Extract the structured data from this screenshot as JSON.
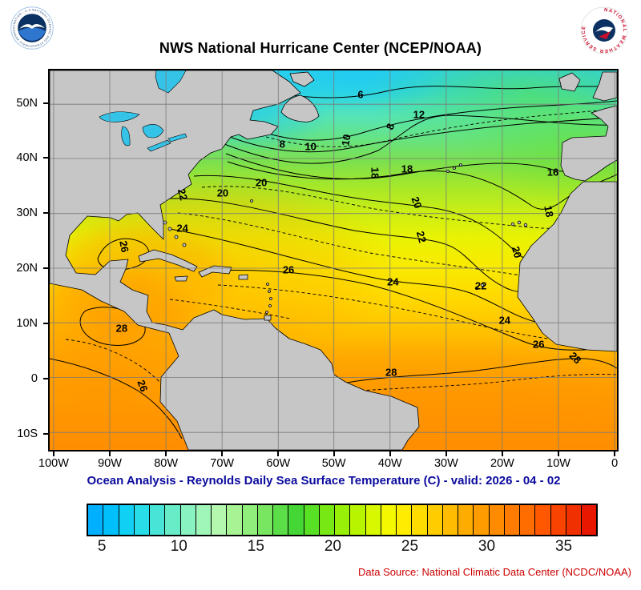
{
  "header": {
    "title": "NWS National Hurricane Center (NCEP/NOAA)"
  },
  "logos": {
    "noaa_ring_text": "NATIONAL OCEANIC AND ATMOSPHERIC ADMINISTRATION - U.S. DEPARTMENT OF COMMERCE",
    "nws_ring_text": "NATIONAL WEATHER SERVICE"
  },
  "caption": "Ocean Analysis - Reynolds Daily Sea Surface Temperature (C) - valid: 2026 - 04 - 02",
  "footer": {
    "data_source": "Data Source: National Climatic Data Center (NCDC/NOAA)"
  },
  "colors": {
    "caption": "#0b0b9e",
    "footer_text": "#cc0000",
    "land": "#c6c6c6",
    "lakes": "#35c4e8"
  },
  "chart_data": {
    "type": "heatmap",
    "subtype": "sea-surface-temperature contour map",
    "region": "North Atlantic / Tropical Atlantic",
    "units": "C",
    "valid_date": "2026 - 04 - 02",
    "isotherm_values": [
      6,
      8,
      10,
      12,
      16,
      18,
      20,
      22,
      24,
      26,
      28
    ],
    "lat_ticks": [
      {
        "label": "50N",
        "pos": 8.9
      },
      {
        "label": "40N",
        "pos": 23.2
      },
      {
        "label": "30N",
        "pos": 37.7
      },
      {
        "label": "20N",
        "pos": 52.1
      },
      {
        "label": "10N",
        "pos": 66.5
      },
      {
        "label": "0",
        "pos": 80.9
      },
      {
        "label": "10S",
        "pos": 95.4
      }
    ],
    "lon_ticks": [
      {
        "label": "100W",
        "pos": 0.7
      },
      {
        "label": "90W",
        "pos": 10.6
      },
      {
        "label": "80W",
        "pos": 20.5
      },
      {
        "label": "70W",
        "pos": 30.4
      },
      {
        "label": "60W",
        "pos": 40.3
      },
      {
        "label": "50W",
        "pos": 50.1
      },
      {
        "label": "40W",
        "pos": 60.0
      },
      {
        "label": "30W",
        "pos": 69.9
      },
      {
        "label": "20W",
        "pos": 79.8
      },
      {
        "label": "10W",
        "pos": 89.7
      },
      {
        "label": "0",
        "pos": 99.6
      }
    ],
    "contour_labels": [
      {
        "v": "6",
        "x": 54.8,
        "y": 6.3,
        "r": 0
      },
      {
        "v": "8",
        "x": 60.0,
        "y": 14.8,
        "r": -70
      },
      {
        "v": "12",
        "x": 65.1,
        "y": 11.6,
        "r": 0
      },
      {
        "v": "8",
        "x": 41.0,
        "y": 19.4,
        "r": 0
      },
      {
        "v": "10",
        "x": 46.0,
        "y": 20.0,
        "r": 0
      },
      {
        "v": "10",
        "x": 52.3,
        "y": 18.4,
        "r": -80
      },
      {
        "v": "16",
        "x": 88.7,
        "y": 26.8,
        "r": 0
      },
      {
        "v": "18",
        "x": 63.0,
        "y": 26.0,
        "r": 0
      },
      {
        "v": "18",
        "x": 57.3,
        "y": 27.0,
        "r": 90
      },
      {
        "v": "20",
        "x": 37.3,
        "y": 29.5,
        "r": 0
      },
      {
        "v": "20",
        "x": 30.5,
        "y": 32.3,
        "r": 0
      },
      {
        "v": "22",
        "x": 23.4,
        "y": 32.7,
        "r": 75
      },
      {
        "v": "20",
        "x": 64.7,
        "y": 34.8,
        "r": 70
      },
      {
        "v": "18",
        "x": 88.0,
        "y": 37.1,
        "r": 80
      },
      {
        "v": "24",
        "x": 23.4,
        "y": 41.6,
        "r": 0
      },
      {
        "v": "22",
        "x": 65.5,
        "y": 43.9,
        "r": 75
      },
      {
        "v": "26",
        "x": 13.1,
        "y": 46.4,
        "r": 80
      },
      {
        "v": "20",
        "x": 82.3,
        "y": 47.9,
        "r": 75
      },
      {
        "v": "26",
        "x": 42.1,
        "y": 52.5,
        "r": 0
      },
      {
        "v": "24",
        "x": 60.5,
        "y": 55.7,
        "r": 0
      },
      {
        "v": "22",
        "x": 76.0,
        "y": 56.8,
        "r": 0
      },
      {
        "v": "28",
        "x": 12.7,
        "y": 67.9,
        "r": 0
      },
      {
        "v": "24",
        "x": 80.2,
        "y": 65.8,
        "r": 0
      },
      {
        "v": "26",
        "x": 86.2,
        "y": 72.2,
        "r": 0
      },
      {
        "v": "28",
        "x": 92.7,
        "y": 75.7,
        "r": 45
      },
      {
        "v": "28",
        "x": 60.2,
        "y": 79.5,
        "r": 0
      },
      {
        "v": "26",
        "x": 16.4,
        "y": 83.1,
        "r": 70
      }
    ]
  },
  "colorbar": {
    "min": 4,
    "max": 37,
    "ticks": [
      5,
      10,
      15,
      20,
      25,
      30,
      35
    ],
    "colors": [
      "#00b0ff",
      "#00c0fc",
      "#10d0f4",
      "#28dce8",
      "#48e4d8",
      "#68ecc8",
      "#88f2c0",
      "#a0f6b8",
      "#b4f8b0",
      "#a8f494",
      "#90ee7c",
      "#78e660",
      "#5cde48",
      "#44d634",
      "#58e024",
      "#78e814",
      "#98f008",
      "#b8f400",
      "#d8f800",
      "#f4f800",
      "#ffec00",
      "#ffdc00",
      "#ffcc00",
      "#ffbc00",
      "#ffac00",
      "#ff9c00",
      "#ff8c00",
      "#ff7c00",
      "#ff6c00",
      "#ff5800",
      "#f84400",
      "#f03000",
      "#e81800"
    ]
  }
}
